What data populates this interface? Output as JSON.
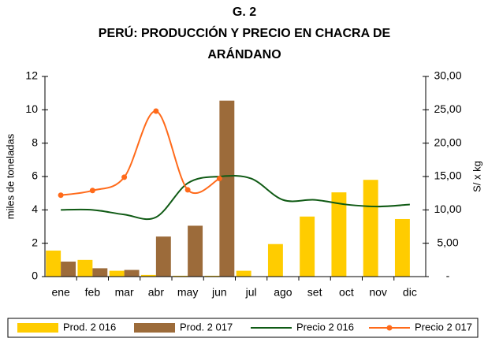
{
  "chart_data": {
    "type": "bar_line",
    "title": [
      "G. 2",
      "PERÚ: PRODUCCIÓN Y PRECIO EN CHACRA DE",
      "ARÁNDANO"
    ],
    "ylabel": "miles de toneladas",
    "y2label": "S/ x kg",
    "categories": [
      "ene",
      "feb",
      "mar",
      "abr",
      "may",
      "jun",
      "jul",
      "ago",
      "set",
      "oct",
      "nov",
      "dic"
    ],
    "ylim": [
      0,
      12
    ],
    "yticks": [
      0,
      2,
      4,
      6,
      8,
      10,
      12
    ],
    "y2lim": [
      0,
      30
    ],
    "y2ticks": [
      {
        "value": 0,
        "label": "-"
      },
      {
        "value": 5,
        "label": "5,00"
      },
      {
        "value": 10,
        "label": "10,00"
      },
      {
        "value": 15,
        "label": "15,00"
      },
      {
        "value": 20,
        "label": "20,00"
      },
      {
        "value": 25,
        "label": "25,00"
      },
      {
        "value": 30,
        "label": "30,00"
      }
    ],
    "series": [
      {
        "name": "Prod. 2 016",
        "type": "bar",
        "color": "#ffcc00",
        "values": [
          1.56,
          1.0,
          0.35,
          0.1,
          0.05,
          0.05,
          0.35,
          1.95,
          3.6,
          5.05,
          5.8,
          3.45
        ]
      },
      {
        "name": "Prod. 2 017",
        "type": "bar",
        "color": "#9c6b3a",
        "values": [
          0.9,
          0.5,
          0.4,
          2.4,
          3.05,
          10.55,
          null,
          null,
          null,
          null,
          null,
          null
        ]
      },
      {
        "name": "Precio 2 016",
        "type": "line",
        "axis": "y2",
        "color": "#0f5a14",
        "values": [
          10.0,
          10.0,
          9.3,
          8.9,
          14.0,
          15.0,
          14.7,
          11.5,
          11.5,
          10.8,
          10.5,
          10.8
        ]
      },
      {
        "name": "Precio 2 017",
        "type": "line",
        "axis": "y2",
        "color": "#ff6a1a",
        "marker": true,
        "values": [
          12.2,
          12.9,
          14.9,
          24.8,
          13.0,
          14.7,
          null,
          null,
          null,
          null,
          null,
          null
        ]
      }
    ]
  }
}
